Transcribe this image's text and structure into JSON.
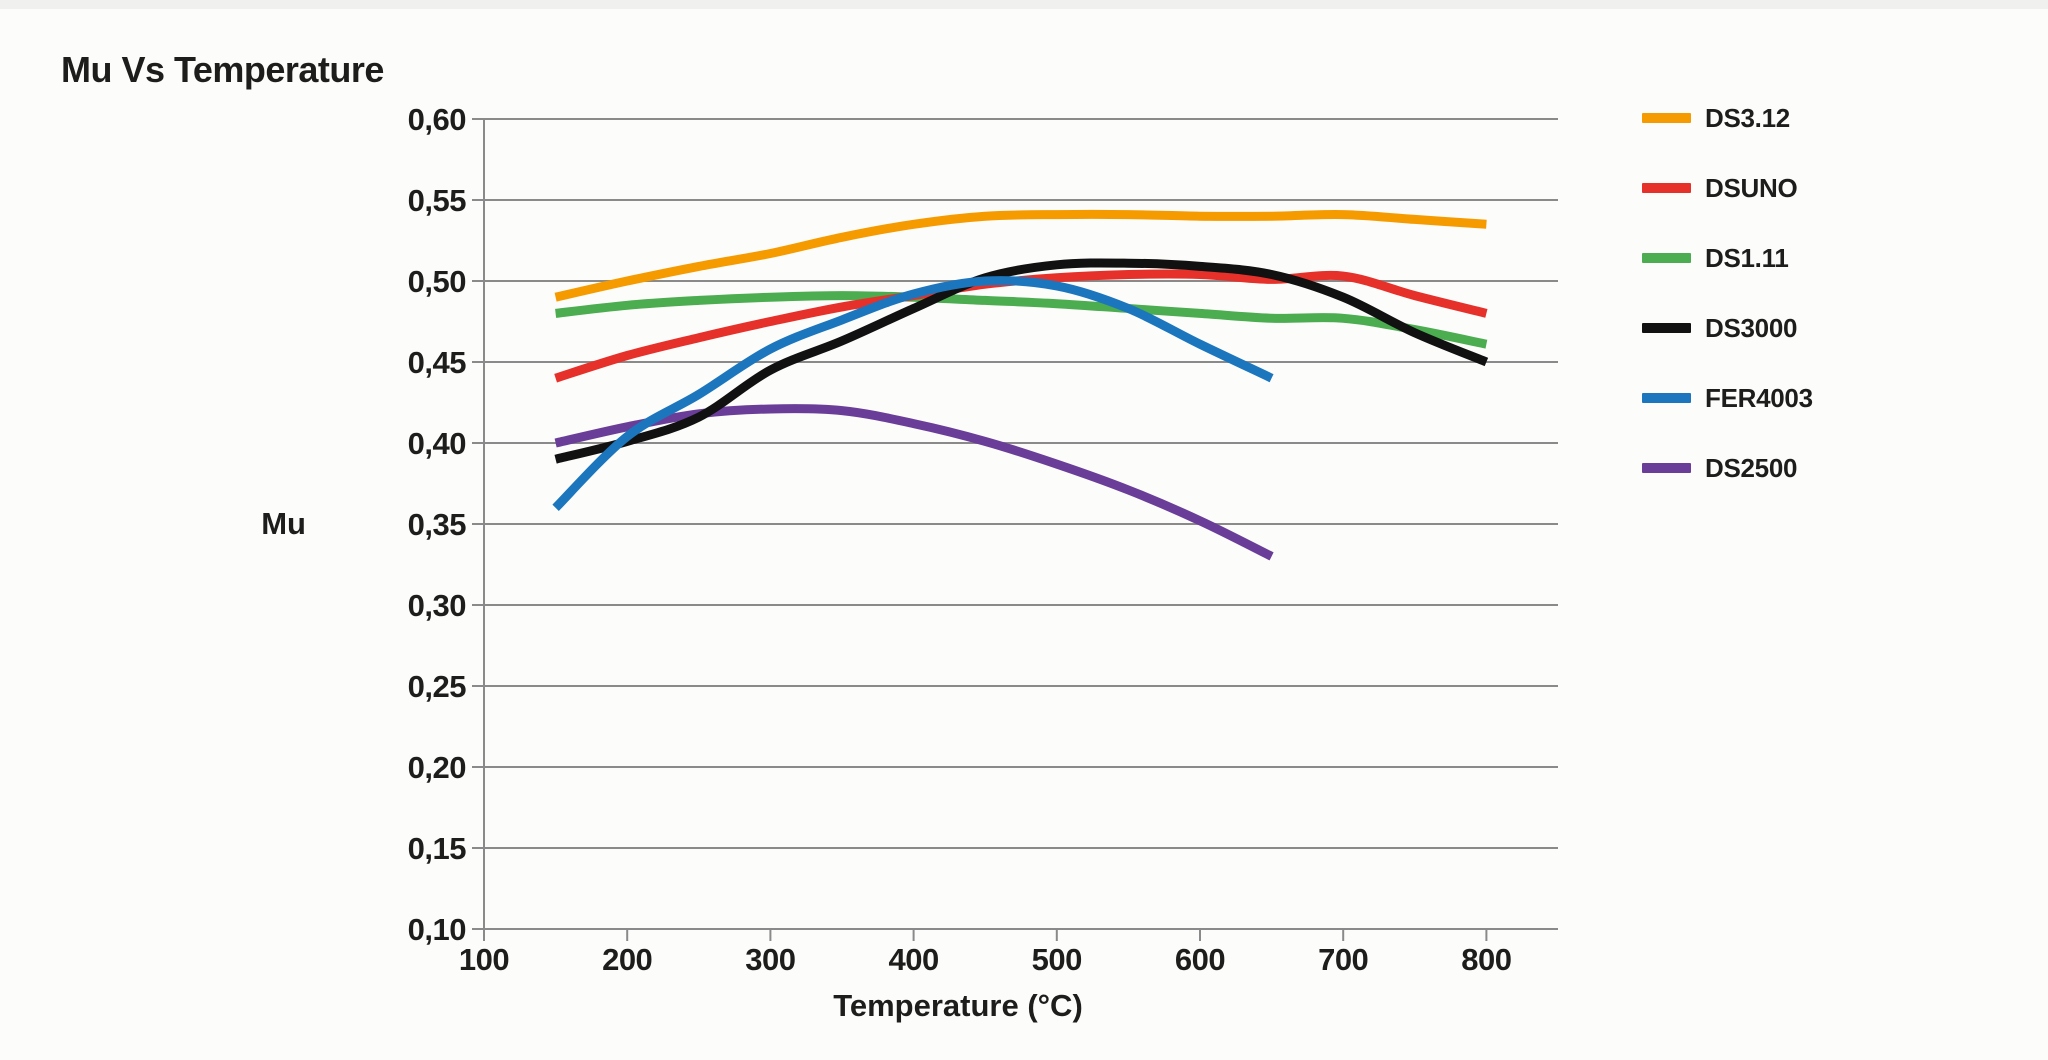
{
  "page": {
    "title": "Mu Vs Temperature"
  },
  "chart_data": {
    "type": "line",
    "title": "Mu Vs Temperature",
    "xlabel": "Temperature (°C)",
    "ylabel": "Mu",
    "xlim": [
      100,
      850
    ],
    "ylim": [
      0.1,
      0.6
    ],
    "x_ticks": [
      100,
      200,
      300,
      400,
      500,
      600,
      700,
      800
    ],
    "y_ticks": [
      0.6,
      0.55,
      0.5,
      0.45,
      0.4,
      0.35,
      0.3,
      0.25,
      0.2,
      0.15,
      0.1
    ],
    "y_tick_labels": [
      "0,60",
      "0,55",
      "0,50",
      "0,45",
      "0,40",
      "0,35",
      "0,30",
      "0,25",
      "0,20",
      "0,15",
      "0,10"
    ],
    "decimal_separator": ",",
    "grid": "horizontal",
    "grid_color": "#8a8a8a",
    "text_color": "#1d1d1b",
    "legend_position": "right",
    "series": [
      {
        "name": "DS3.12",
        "color": "#F59B00",
        "x": [
          150,
          200,
          250,
          300,
          350,
          400,
          450,
          500,
          550,
          600,
          650,
          700,
          750,
          800
        ],
        "values": [
          0.49,
          0.5,
          0.509,
          0.517,
          0.527,
          0.535,
          0.54,
          0.541,
          0.541,
          0.54,
          0.54,
          0.541,
          0.538,
          0.535
        ]
      },
      {
        "name": "DSUNO",
        "color": "#E6312B",
        "x": [
          150,
          200,
          250,
          300,
          350,
          400,
          450,
          500,
          550,
          600,
          650,
          700,
          750,
          800
        ],
        "values": [
          0.44,
          0.454,
          0.465,
          0.475,
          0.484,
          0.491,
          0.498,
          0.502,
          0.504,
          0.504,
          0.501,
          0.503,
          0.491,
          0.48
        ]
      },
      {
        "name": "DS1.11",
        "color": "#4BAD4F",
        "x": [
          150,
          200,
          250,
          300,
          350,
          400,
          450,
          500,
          550,
          600,
          650,
          700,
          750,
          800
        ],
        "values": [
          0.48,
          0.485,
          0.488,
          0.49,
          0.491,
          0.49,
          0.488,
          0.486,
          0.483,
          0.48,
          0.477,
          0.477,
          0.47,
          0.461
        ]
      },
      {
        "name": "DS3000",
        "color": "#111111",
        "x": [
          150,
          200,
          250,
          300,
          350,
          400,
          450,
          500,
          550,
          600,
          650,
          700,
          750,
          800
        ],
        "values": [
          0.39,
          0.401,
          0.416,
          0.445,
          0.463,
          0.483,
          0.502,
          0.51,
          0.511,
          0.509,
          0.504,
          0.49,
          0.468,
          0.45
        ]
      },
      {
        "name": "FER4003",
        "color": "#1C76BD",
        "x": [
          150,
          200,
          250,
          300,
          350,
          400,
          450,
          500,
          550,
          600,
          650
        ],
        "values": [
          0.36,
          0.404,
          0.43,
          0.458,
          0.476,
          0.492,
          0.5,
          0.497,
          0.483,
          0.461,
          0.44
        ]
      },
      {
        "name": "DS2500",
        "color": "#6A3E98",
        "x": [
          150,
          200,
          250,
          300,
          350,
          400,
          450,
          500,
          550,
          600,
          650
        ],
        "values": [
          0.4,
          0.41,
          0.418,
          0.421,
          0.42,
          0.412,
          0.401,
          0.387,
          0.371,
          0.352,
          0.33
        ]
      }
    ]
  }
}
